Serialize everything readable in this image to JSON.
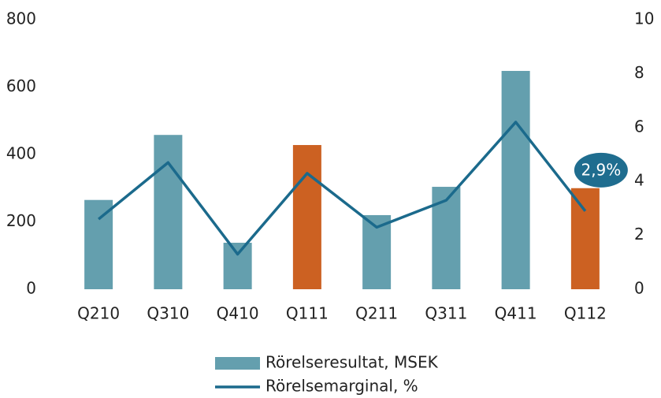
{
  "chart_data": {
    "type": "bar_line",
    "categories": [
      "Q210",
      "Q310",
      "Q410",
      "Q111",
      "Q211",
      "Q311",
      "Q411",
      "Q112"
    ],
    "series": [
      {
        "name": "Rörelseresultat, MSEK",
        "type": "bar",
        "color": "#649fae",
        "colors": [
          "#649fae",
          "#649fae",
          "#649fae",
          "#cc6122",
          "#649fae",
          "#649fae",
          "#649fae",
          "#cc6122"
        ],
        "values": [
          265,
          458,
          138,
          428,
          220,
          304,
          648,
          300
        ]
      },
      {
        "name": "Rörelsemarginal, %",
        "type": "line",
        "axis": "y2",
        "color": "#1b6a8c",
        "values": [
          2.6,
          4.7,
          1.3,
          4.3,
          2.3,
          3.3,
          6.2,
          2.9
        ],
        "value_labels": [
          null,
          null,
          null,
          null,
          null,
          null,
          null,
          "2,9%"
        ]
      }
    ],
    "ylim": [
      0,
      800
    ],
    "yticks": [
      0,
      200,
      400,
      600,
      800
    ],
    "y2lim": [
      0,
      10
    ],
    "y2ticks": [
      0,
      2,
      4,
      6,
      8,
      10
    ],
    "grid": false,
    "legend": "bottom"
  }
}
